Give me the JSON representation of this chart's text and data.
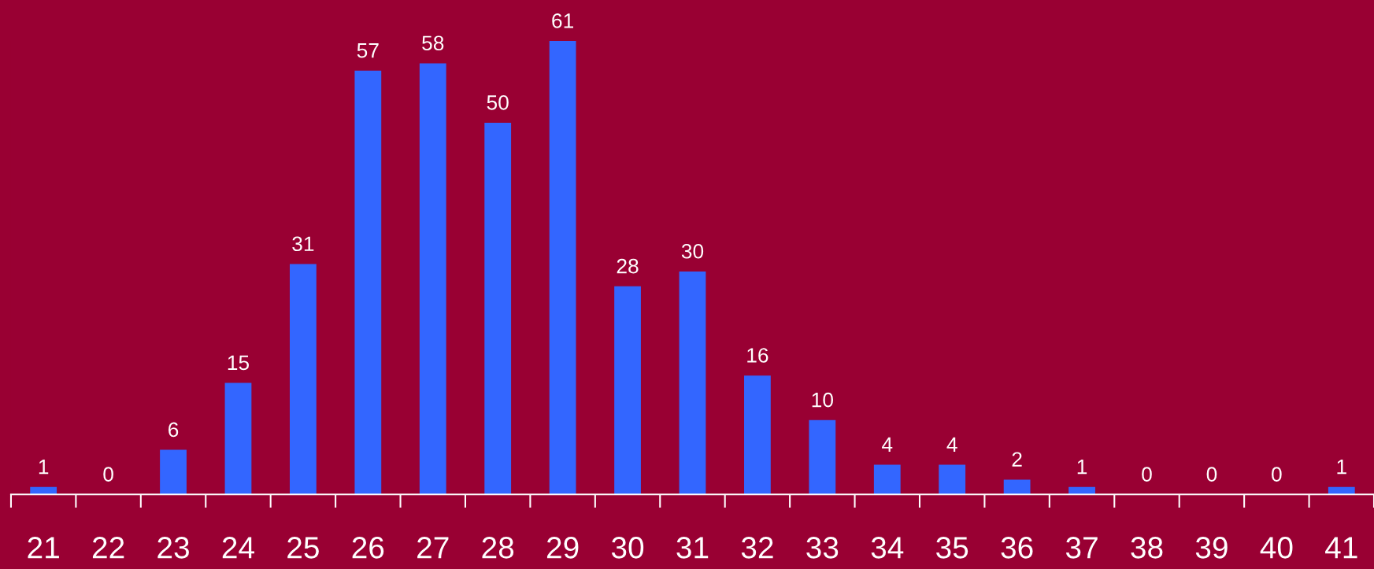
{
  "chart_data": {
    "type": "bar",
    "categories": [
      "21",
      "22",
      "23",
      "24",
      "25",
      "26",
      "27",
      "28",
      "29",
      "30",
      "31",
      "32",
      "33",
      "34",
      "35",
      "36",
      "37",
      "38",
      "39",
      "40",
      "41"
    ],
    "values": [
      1,
      0,
      6,
      15,
      31,
      57,
      58,
      50,
      61,
      28,
      30,
      16,
      10,
      4,
      4,
      2,
      1,
      0,
      0,
      0,
      1
    ],
    "color": "#3366ff",
    "data_labels": true,
    "grid": false,
    "legend": false
  }
}
